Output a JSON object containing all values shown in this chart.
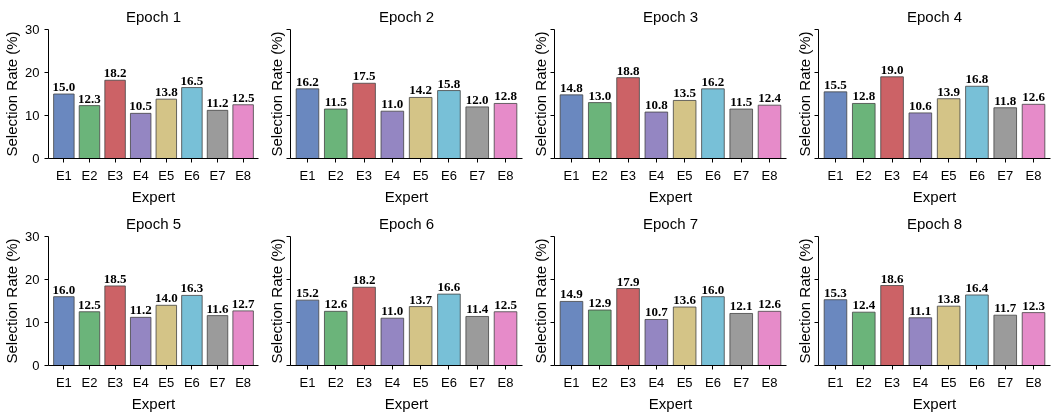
{
  "chart_data": [
    {
      "type": "bar",
      "title": "Epoch 1",
      "xlabel": "Expert",
      "ylabel": "Selection Rate (%)",
      "categories": [
        "E1",
        "E2",
        "E3",
        "E4",
        "E5",
        "E6",
        "E7",
        "E8"
      ],
      "values": [
        15.0,
        12.3,
        18.2,
        10.5,
        13.8,
        16.5,
        11.2,
        12.5
      ],
      "value_labels": [
        "15.0",
        "12.3",
        "18.2",
        "10.5",
        "13.8",
        "16.5",
        "11.2",
        "12.5"
      ],
      "colors": [
        "#6a88bf",
        "#6bb47a",
        "#cc6266",
        "#9486c2",
        "#d4c487",
        "#78c0d7",
        "#9b9b9b",
        "#e68bc9"
      ],
      "ylim": [
        0,
        30
      ],
      "yticks": [
        0,
        10,
        20,
        30
      ],
      "grid": false
    },
    {
      "type": "bar",
      "title": "Epoch 2",
      "xlabel": "Expert",
      "ylabel": "Selection Rate (%)",
      "categories": [
        "E1",
        "E2",
        "E3",
        "E4",
        "E5",
        "E6",
        "E7",
        "E8"
      ],
      "values": [
        16.2,
        11.5,
        17.5,
        11.0,
        14.2,
        15.8,
        12.0,
        12.8
      ],
      "value_labels": [
        "16.2",
        "11.5",
        "17.5",
        "11.0",
        "14.2",
        "15.8",
        "12.0",
        "12.8"
      ],
      "colors": [
        "#6a88bf",
        "#6bb47a",
        "#cc6266",
        "#9486c2",
        "#d4c487",
        "#78c0d7",
        "#9b9b9b",
        "#e68bc9"
      ],
      "ylim": [
        0,
        30
      ],
      "yticks": [
        0,
        10,
        20,
        30
      ],
      "grid": false,
      "tick_labels": "x"
    },
    {
      "type": "bar",
      "title": "Epoch 3",
      "xlabel": "Expert",
      "ylabel": "Selection Rate (%)",
      "categories": [
        "E1",
        "E2",
        "E3",
        "E4",
        "E5",
        "E6",
        "E7",
        "E8"
      ],
      "values": [
        14.8,
        13.0,
        18.8,
        10.8,
        13.5,
        16.2,
        11.5,
        12.4
      ],
      "value_labels": [
        "14.8",
        "13.0",
        "18.8",
        "10.8",
        "13.5",
        "16.2",
        "11.5",
        "12.4"
      ],
      "colors": [
        "#6a88bf",
        "#6bb47a",
        "#cc6266",
        "#9486c2",
        "#d4c487",
        "#78c0d7",
        "#9b9b9b",
        "#e68bc9"
      ],
      "ylim": [
        0,
        30
      ],
      "yticks": [
        0,
        10,
        20,
        30
      ],
      "grid": false,
      "tick_labels": "x"
    },
    {
      "type": "bar",
      "title": "Epoch 4",
      "xlabel": "Expert",
      "ylabel": "Selection Rate (%)",
      "categories": [
        "E1",
        "E2",
        "E3",
        "E4",
        "E5",
        "E6",
        "E7",
        "E8"
      ],
      "values": [
        15.5,
        12.8,
        19.0,
        10.6,
        13.9,
        16.8,
        11.8,
        12.6
      ],
      "value_labels": [
        "15.5",
        "12.8",
        "19.0",
        "10.6",
        "13.9",
        "16.8",
        "11.8",
        "12.6"
      ],
      "colors": [
        "#6a88bf",
        "#6bb47a",
        "#cc6266",
        "#9486c2",
        "#d4c487",
        "#78c0d7",
        "#9b9b9b",
        "#e68bc9"
      ],
      "ylim": [
        0,
        30
      ],
      "yticks": [
        0,
        10,
        20,
        30
      ],
      "grid": false,
      "tick_labels": "x"
    },
    {
      "type": "bar",
      "title": "Epoch 5",
      "xlabel": "Expert",
      "ylabel": "Selection Rate (%)",
      "categories": [
        "E1",
        "E2",
        "E3",
        "E4",
        "E5",
        "E6",
        "E7",
        "E8"
      ],
      "values": [
        16.0,
        12.5,
        18.5,
        11.2,
        14.0,
        16.3,
        11.6,
        12.7
      ],
      "value_labels": [
        "16.0",
        "12.5",
        "18.5",
        "11.2",
        "14.0",
        "16.3",
        "11.6",
        "12.7"
      ],
      "colors": [
        "#6a88bf",
        "#6bb47a",
        "#cc6266",
        "#9486c2",
        "#d4c487",
        "#78c0d7",
        "#9b9b9b",
        "#e68bc9"
      ],
      "ylim": [
        0,
        30
      ],
      "yticks": [
        0,
        10,
        20,
        30
      ],
      "grid": false
    },
    {
      "type": "bar",
      "title": "Epoch 6",
      "xlabel": "Expert",
      "ylabel": "Selection Rate (%)",
      "categories": [
        "E1",
        "E2",
        "E3",
        "E4",
        "E5",
        "E6",
        "E7",
        "E8"
      ],
      "values": [
        15.2,
        12.6,
        18.2,
        11.0,
        13.7,
        16.6,
        11.4,
        12.5
      ],
      "value_labels": [
        "15.2",
        "12.6",
        "18.2",
        "11.0",
        "13.7",
        "16.6",
        "11.4",
        "12.5"
      ],
      "colors": [
        "#6a88bf",
        "#6bb47a",
        "#cc6266",
        "#9486c2",
        "#d4c487",
        "#78c0d7",
        "#9b9b9b",
        "#e68bc9"
      ],
      "ylim": [
        0,
        30
      ],
      "yticks": [
        0,
        10,
        20,
        30
      ],
      "grid": false,
      "tick_labels": "x"
    },
    {
      "type": "bar",
      "title": "Epoch 7",
      "xlabel": "Expert",
      "ylabel": "Selection Rate (%)",
      "categories": [
        "E1",
        "E2",
        "E3",
        "E4",
        "E5",
        "E6",
        "E7",
        "E8"
      ],
      "values": [
        14.9,
        12.9,
        17.9,
        10.7,
        13.6,
        16.0,
        12.1,
        12.6
      ],
      "value_labels": [
        "14.9",
        "12.9",
        "17.9",
        "10.7",
        "13.6",
        "16.0",
        "12.1",
        "12.6"
      ],
      "colors": [
        "#6a88bf",
        "#6bb47a",
        "#cc6266",
        "#9486c2",
        "#d4c487",
        "#78c0d7",
        "#9b9b9b",
        "#e68bc9"
      ],
      "ylim": [
        0,
        30
      ],
      "yticks": [
        0,
        10,
        20,
        30
      ],
      "grid": false,
      "tick_labels": "x"
    },
    {
      "type": "bar",
      "title": "Epoch 8",
      "xlabel": "Expert",
      "ylabel": "Selection Rate (%)",
      "categories": [
        "E1",
        "E2",
        "E3",
        "E4",
        "E5",
        "E6",
        "E7",
        "E8"
      ],
      "values": [
        15.3,
        12.4,
        18.6,
        11.1,
        13.8,
        16.4,
        11.7,
        12.3
      ],
      "value_labels": [
        "15.3",
        "12.4",
        "18.6",
        "11.1",
        "13.8",
        "16.4",
        "11.7",
        "12.3"
      ],
      "colors": [
        "#6a88bf",
        "#6bb47a",
        "#cc6266",
        "#9486c2",
        "#d4c487",
        "#78c0d7",
        "#9b9b9b",
        "#e68bc9"
      ],
      "ylim": [
        0,
        30
      ],
      "yticks": [
        0,
        10,
        20,
        30
      ],
      "grid": false,
      "tick_labels": "x"
    }
  ]
}
